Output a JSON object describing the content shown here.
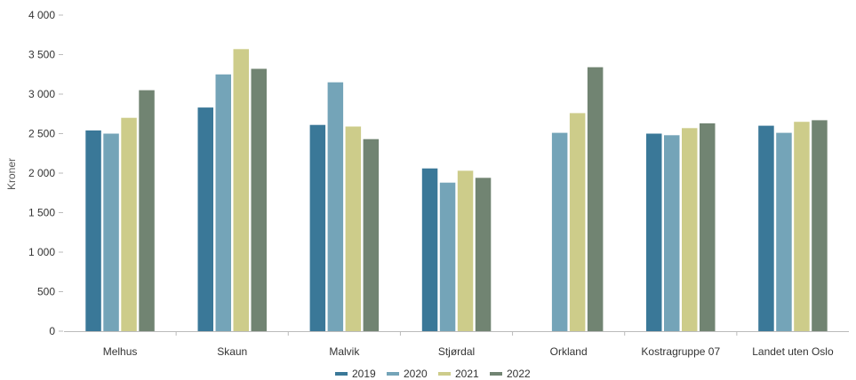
{
  "chart_data": {
    "type": "bar",
    "title": "",
    "xlabel": "",
    "ylabel": "Kroner",
    "ylim": [
      0,
      4000
    ],
    "yticks": [
      0,
      500,
      1000,
      1500,
      2000,
      2500,
      3000,
      3500,
      4000
    ],
    "ytick_labels": [
      "0",
      "500",
      "1 000",
      "1 500",
      "2 000",
      "2 500",
      "3 000",
      "3 500",
      "4 000"
    ],
    "categories": [
      "Melhus",
      "Skaun",
      "Malvik",
      "Stjørdal",
      "Orkland",
      "Kostragruppe 07",
      "Landet uten Oslo"
    ],
    "series": [
      {
        "name": "2019",
        "color": "#3a7898",
        "values": [
          2540,
          2830,
          2610,
          2060,
          null,
          2500,
          2600
        ]
      },
      {
        "name": "2020",
        "color": "#74a4b8",
        "values": [
          2500,
          3250,
          3150,
          1880,
          2510,
          2480,
          2510
        ]
      },
      {
        "name": "2021",
        "color": "#cdcc8a",
        "values": [
          2700,
          3570,
          2590,
          2030,
          2760,
          2570,
          2650
        ]
      },
      {
        "name": "2022",
        "color": "#718472",
        "values": [
          3050,
          3320,
          2430,
          1940,
          3340,
          2630,
          2670
        ]
      }
    ],
    "grid": false,
    "legend_position": "bottom"
  }
}
